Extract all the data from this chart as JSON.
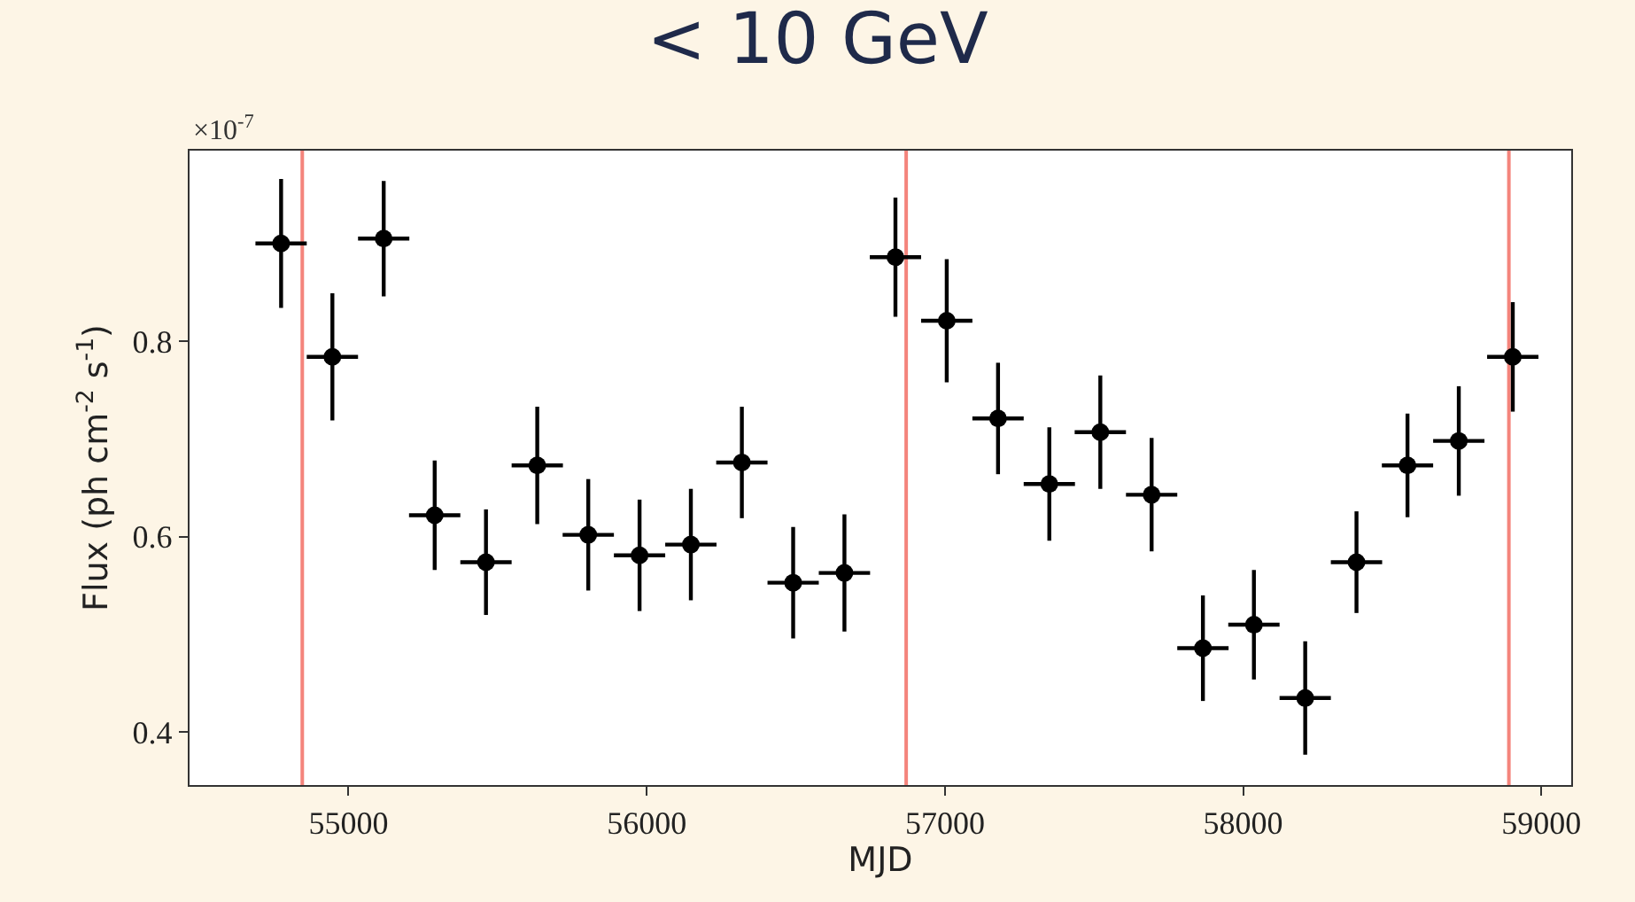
{
  "chart_data": {
    "type": "scatter",
    "title": "< 10 GeV",
    "xlabel": "MJD",
    "ylabel": "Flux (ph cm$^{-2}$ s$^{-1}$)",
    "annotations": [
      "×10$^{-7}$"
    ],
    "x": [
      54774,
      54946,
      55118,
      55289,
      55461,
      55633,
      55804,
      55976,
      56148,
      56319,
      56491,
      56663,
      56834,
      57006,
      57178,
      57350,
      57521,
      57693,
      57865,
      58036,
      58208,
      58380,
      58551,
      58723,
      58904
    ],
    "series": [
      {
        "color": "#000000",
        "values": [
          0.9,
          0.784,
          0.905,
          0.622,
          0.574,
          0.673,
          0.602,
          0.581,
          0.592,
          0.676,
          0.553,
          0.563,
          0.886,
          0.821,
          0.721,
          0.654,
          0.707,
          0.643,
          0.486,
          0.51,
          0.435,
          0.574,
          0.673,
          0.698,
          0.784
        ],
        "errors": [
          0.066,
          0.065,
          0.059,
          0.056,
          0.054,
          0.06,
          0.057,
          0.057,
          0.057,
          0.057,
          0.057,
          0.06,
          0.061,
          0.063,
          0.057,
          0.058,
          0.058,
          0.058,
          0.054,
          0.056,
          0.058,
          0.052,
          0.053,
          0.056,
          0.056
        ],
        "xerrors": [
          86,
          86,
          86,
          86,
          86,
          86,
          86,
          86,
          86,
          86,
          86,
          86,
          86,
          86,
          86,
          86,
          86,
          86,
          86,
          86,
          86,
          86,
          86,
          86,
          86
        ]
      }
    ],
    "xlim": [
      54467,
      59100
    ],
    "xticks": [
      55000,
      56000,
      57000,
      58000,
      59000
    ],
    "ylim": [
      0.346,
      0.995
    ],
    "yticks": [
      0.4,
      0.6,
      0.8
    ],
    "ref_lines": [
      {
        "axis": "x",
        "value": 54845,
        "color": "#f4847c"
      },
      {
        "axis": "x",
        "value": 56870,
        "color": "#f4847c"
      },
      {
        "axis": "x",
        "value": 58891,
        "color": "#f4847c"
      }
    ],
    "grid": false,
    "marker": "circle"
  }
}
